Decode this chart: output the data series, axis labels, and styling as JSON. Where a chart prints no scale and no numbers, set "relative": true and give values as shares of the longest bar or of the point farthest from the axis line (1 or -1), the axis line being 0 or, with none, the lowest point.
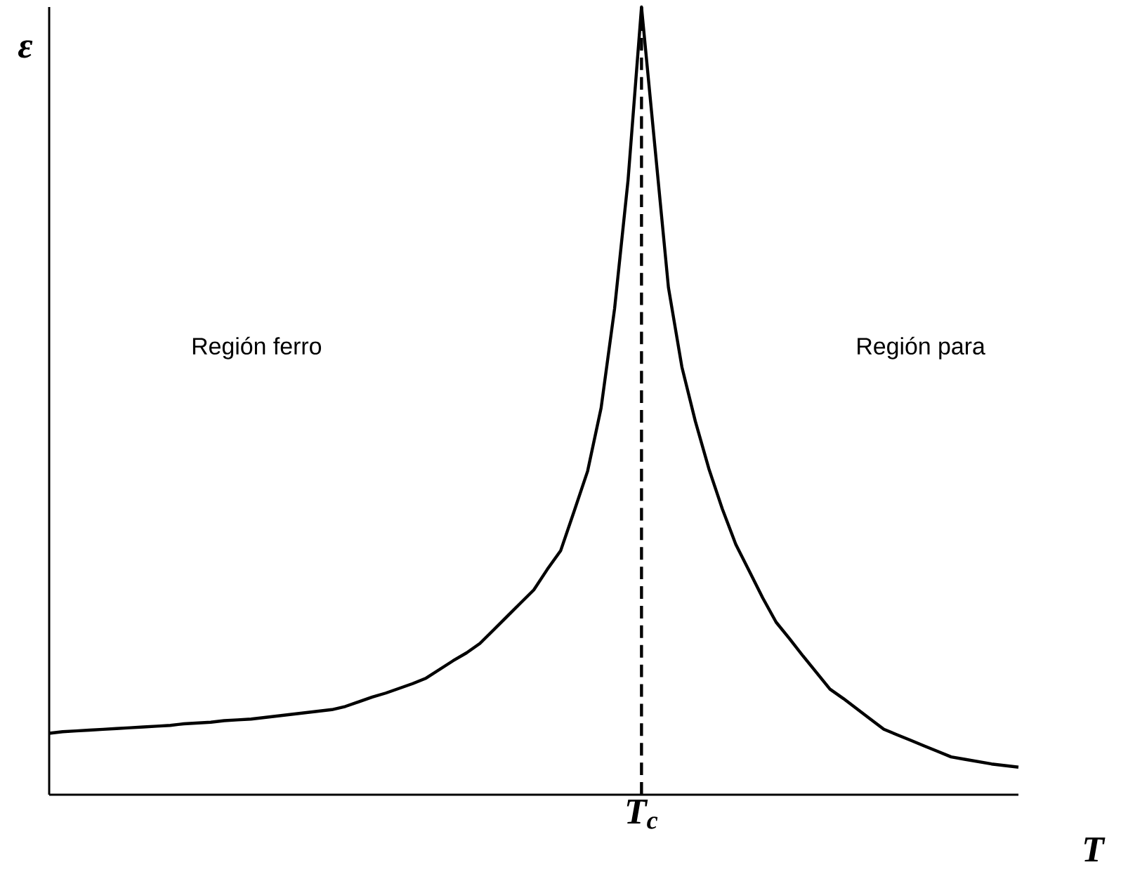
{
  "chart_data": {
    "type": "line",
    "relative": true,
    "xlabel": "T",
    "ylabel": "ε",
    "categories": [
      null,
      null,
      null,
      null,
      null,
      null,
      null,
      null,
      null,
      null,
      null,
      null,
      null,
      null,
      null,
      null,
      null,
      null,
      null,
      null,
      null,
      null,
      null,
      null,
      null,
      null,
      null,
      null,
      null,
      null,
      null,
      null,
      null,
      null,
      null,
      null,
      null,
      null,
      null,
      null,
      null,
      null,
      null,
      null,
      null,
      null,
      null,
      null,
      null,
      null,
      null,
      null,
      null,
      null,
      null,
      null,
      null,
      null,
      null,
      null,
      null,
      null,
      null,
      null,
      null,
      null,
      null,
      null,
      null,
      null,
      null,
      null,
      null
    ],
    "values": [
      0.078,
      0.08,
      0.081,
      0.082,
      0.083,
      0.084,
      0.085,
      0.086,
      0.087,
      0.088,
      0.09,
      0.091,
      0.092,
      0.094,
      0.095,
      0.096,
      0.098,
      0.1,
      0.102,
      0.104,
      0.106,
      0.108,
      0.112,
      0.118,
      0.124,
      0.129,
      0.135,
      0.141,
      0.148,
      0.159,
      0.17,
      0.18,
      0.192,
      0.209,
      0.226,
      0.243,
      0.26,
      0.286,
      0.31,
      0.36,
      0.411,
      0.491,
      0.617,
      0.78,
      1.0,
      0.822,
      0.644,
      0.543,
      0.474,
      0.414,
      0.363,
      0.318,
      0.284,
      0.25,
      0.219,
      0.198,
      0.176,
      0.155,
      0.134,
      0.122,
      0.109,
      0.096,
      0.083,
      0.076,
      0.069,
      0.062,
      0.055,
      0.048,
      0.045,
      0.042,
      0.039,
      0.037,
      0.035
    ],
    "color": "#000000",
    "ref_lines": [
      {
        "axis": "x",
        "label": "T$_{c}$",
        "line_style": "dashed",
        "color": "#000000"
      }
    ],
    "annotations": [
      "Región ferro",
      "Región para"
    ]
  }
}
